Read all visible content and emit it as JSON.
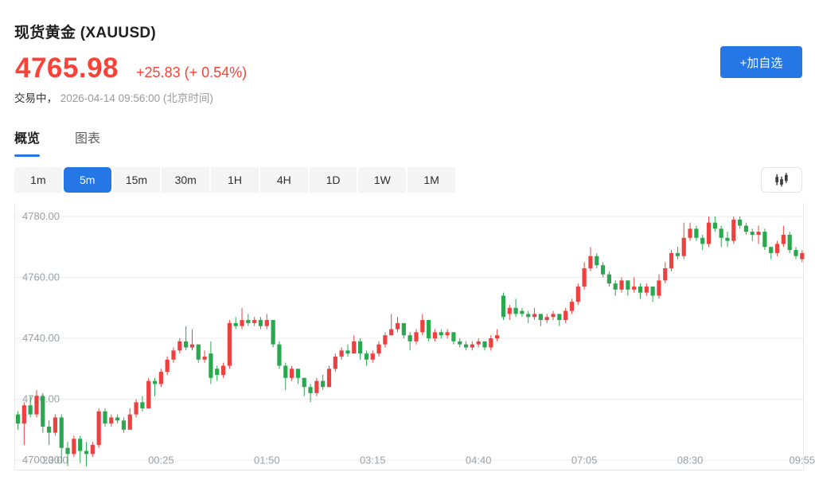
{
  "header": {
    "title": "现货黄金 (XAUUSD)",
    "price": "4765.98",
    "change": "+25.83 (+ 0.54%)",
    "status_label": "交易中，",
    "timestamp": "2026-04-14 09:56:00",
    "timezone_note": "(北京时间)",
    "add_watchlist_label": "+加自选"
  },
  "tabs": [
    {
      "label": "概览",
      "active": true
    },
    {
      "label": "图表",
      "active": false
    }
  ],
  "intervals": [
    {
      "label": "1m",
      "active": false
    },
    {
      "label": "5m",
      "active": true
    },
    {
      "label": "15m",
      "active": false
    },
    {
      "label": "30m",
      "active": false
    },
    {
      "label": "1H",
      "active": false
    },
    {
      "label": "4H",
      "active": false
    },
    {
      "label": "1D",
      "active": false
    },
    {
      "label": "1W",
      "active": false
    },
    {
      "label": "1M",
      "active": false
    }
  ],
  "icons": {
    "chart_type_icon": "candlestick-chart-icon"
  },
  "colors": {
    "accent_blue": "#2577e5",
    "price_red": "#fb4238",
    "up_red": "#ef4040",
    "down_green": "#2aa850",
    "grid": "#ececec",
    "axis_text": "#9aa0a6"
  },
  "chart_data": {
    "type": "candlestick",
    "interval": "5m",
    "up_color": "#ef4040",
    "down_color": "#2aa850",
    "ylim": [
      4700,
      4780
    ],
    "grid": true,
    "y_ticks": [
      {
        "label": "4780.00",
        "value": 4780
      },
      {
        "label": "4760.00",
        "value": 4760
      },
      {
        "label": "4740.00",
        "value": 4740
      },
      {
        "label": "4720.00",
        "value": 4720
      },
      {
        "label": "4700.00",
        "value": 4700
      }
    ],
    "x_labels": [
      {
        "label": "23:00",
        "index": 6
      },
      {
        "label": "00:25",
        "index": 23
      },
      {
        "label": "01:50",
        "index": 40
      },
      {
        "label": "03:15",
        "index": 57
      },
      {
        "label": "04:40",
        "index": 74
      },
      {
        "label": "07:05",
        "index": 91
      },
      {
        "label": "08:30",
        "index": 108
      },
      {
        "label": "09:55",
        "index": 126
      }
    ],
    "candles_ohlc": [
      [
        4715,
        4716,
        4710,
        4712
      ],
      [
        4712,
        4719,
        4705,
        4718
      ],
      [
        4718,
        4721,
        4714,
        4715
      ],
      [
        4715,
        4723,
        4714,
        4721
      ],
      [
        4721,
        4722,
        4709,
        4711
      ],
      [
        4711,
        4713,
        4705,
        4709
      ],
      [
        4709,
        4715,
        4708,
        4714
      ],
      [
        4714,
        4715,
        4699,
        4704
      ],
      [
        4704,
        4706,
        4698,
        4702
      ],
      [
        4702,
        4708,
        4701,
        4707
      ],
      [
        4707,
        4708,
        4699,
        4703
      ],
      [
        4703,
        4706,
        4698,
        4702
      ],
      [
        4702,
        4706,
        4701,
        4705
      ],
      [
        4705,
        4717,
        4704,
        4716
      ],
      [
        4716,
        4717,
        4711,
        4712
      ],
      [
        4712,
        4715,
        4711,
        4714
      ],
      [
        4714,
        4715,
        4712,
        4713
      ],
      [
        4713,
        4714,
        4709,
        4710
      ],
      [
        4710,
        4717,
        4710,
        4715
      ],
      [
        4715,
        4720,
        4714,
        4719
      ],
      [
        4719,
        4721,
        4716,
        4717
      ],
      [
        4717,
        4727,
        4717,
        4726
      ],
      [
        4726,
        4727,
        4721,
        4725
      ],
      [
        4725,
        4730,
        4724,
        4729
      ],
      [
        4729,
        4734,
        4728,
        4733
      ],
      [
        4733,
        4737,
        4732,
        4736
      ],
      [
        4736,
        4740,
        4735,
        4739
      ],
      [
        4739,
        4744,
        4736,
        4737
      ],
      [
        4737,
        4743,
        4736,
        4738
      ],
      [
        4738,
        4738,
        4732,
        4733
      ],
      [
        4733,
        4736,
        4732,
        4734
      ],
      [
        4735,
        4739,
        4725,
        4727
      ],
      [
        4730,
        4731,
        4726,
        4728
      ],
      [
        4728,
        4732,
        4727,
        4731
      ],
      [
        4731,
        4746,
        4730,
        4745
      ],
      [
        4745,
        4747,
        4743,
        4744
      ],
      [
        4744,
        4750,
        4743,
        4746
      ],
      [
        4746,
        4748,
        4744,
        4745
      ],
      [
        4745,
        4747,
        4744,
        4746
      ],
      [
        4746,
        4747,
        4743,
        4744
      ],
      [
        4744,
        4748,
        4743,
        4746
      ],
      [
        4746,
        4746,
        4737,
        4738
      ],
      [
        4738,
        4739,
        4730,
        4731
      ],
      [
        4731,
        4732,
        4723,
        4727
      ],
      [
        4727,
        4731,
        4726,
        4730
      ],
      [
        4730,
        4730,
        4725,
        4727
      ],
      [
        4727,
        4727,
        4721,
        4724
      ],
      [
        4724,
        4725,
        4719,
        4722
      ],
      [
        4722,
        4727,
        4721,
        4726
      ],
      [
        4726,
        4728,
        4723,
        4724
      ],
      [
        4724,
        4731,
        4724,
        4730
      ],
      [
        4730,
        4735,
        4729,
        4734
      ],
      [
        4734,
        4737,
        4733,
        4736
      ],
      [
        4736,
        4738,
        4734,
        4735
      ],
      [
        4735,
        4741,
        4735,
        4739
      ],
      [
        4739,
        4740,
        4733,
        4735
      ],
      [
        4735,
        4736,
        4731,
        4733
      ],
      [
        4733,
        4736,
        4732,
        4735
      ],
      [
        4735,
        4739,
        4734,
        4738
      ],
      [
        4738,
        4742,
        4737,
        4741
      ],
      [
        4741,
        4748,
        4741,
        4743
      ],
      [
        4743,
        4747,
        4742,
        4745
      ],
      [
        4745,
        4745,
        4740,
        4741
      ],
      [
        4741,
        4742,
        4736,
        4739
      ],
      [
        4739,
        4743,
        4738,
        4742
      ],
      [
        4742,
        4748,
        4741,
        4746
      ],
      [
        4746,
        4746,
        4739,
        4740
      ],
      [
        4740,
        4743,
        4739,
        4742
      ],
      [
        4742,
        4743,
        4740,
        4741
      ],
      [
        4741,
        4743,
        4740,
        4742
      ],
      [
        4742,
        4742,
        4738,
        4739
      ],
      [
        4739,
        4740,
        4737,
        4738
      ],
      [
        4738,
        4739,
        4736,
        4737
      ],
      [
        4737,
        4739,
        4736,
        4738
      ],
      [
        4738,
        4740,
        4737,
        4739
      ],
      [
        4739,
        4739,
        4736,
        4737
      ],
      [
        4737,
        4741,
        4736,
        4740
      ],
      [
        4740,
        4743,
        4739,
        4741
      ],
      [
        4754,
        4755,
        4746,
        4747
      ],
      [
        4748,
        4751,
        4746,
        4750
      ],
      [
        4750,
        4753,
        4747,
        4748
      ],
      [
        4749,
        4750,
        4747,
        4748
      ],
      [
        4748,
        4749,
        4745,
        4747
      ],
      [
        4747,
        4750,
        4746,
        4748
      ],
      [
        4748,
        4748,
        4744,
        4746
      ],
      [
        4746,
        4748,
        4745,
        4747
      ],
      [
        4747,
        4749,
        4746,
        4748
      ],
      [
        4748,
        4748,
        4744,
        4746
      ],
      [
        4746,
        4750,
        4745,
        4749
      ],
      [
        4749,
        4753,
        4748,
        4752
      ],
      [
        4752,
        4758,
        4751,
        4757
      ],
      [
        4757,
        4765,
        4756,
        4763
      ],
      [
        4763,
        4770,
        4762,
        4767
      ],
      [
        4767,
        4768,
        4763,
        4764
      ],
      [
        4764,
        4765,
        4760,
        4761
      ],
      [
        4761,
        4762,
        4757,
        4758
      ],
      [
        4758,
        4759,
        4754,
        4756
      ],
      [
        4756,
        4760,
        4755,
        4759
      ],
      [
        4759,
        4759,
        4754,
        4756
      ],
      [
        4756,
        4760,
        4755,
        4757
      ],
      [
        4757,
        4758,
        4753,
        4755
      ],
      [
        4755,
        4758,
        4754,
        4757
      ],
      [
        4757,
        4757,
        4752,
        4754
      ],
      [
        4754,
        4761,
        4753,
        4759
      ],
      [
        4759,
        4765,
        4758,
        4763
      ],
      [
        4763,
        4769,
        4762,
        4768
      ],
      [
        4768,
        4770,
        4766,
        4767
      ],
      [
        4767,
        4778,
        4766,
        4773
      ],
      [
        4773,
        4778,
        4772,
        4776
      ],
      [
        4776,
        4777,
        4772,
        4773
      ],
      [
        4773,
        4774,
        4769,
        4771
      ],
      [
        4771,
        4780,
        4770,
        4778
      ],
      [
        4778,
        4780,
        4775,
        4776
      ],
      [
        4776,
        4777,
        4770,
        4773
      ],
      [
        4773,
        4775,
        4770,
        4772
      ],
      [
        4772,
        4780,
        4771,
        4779
      ],
      [
        4779,
        4780,
        4776,
        4777
      ],
      [
        4777,
        4778,
        4774,
        4775
      ],
      [
        4775,
        4776,
        4772,
        4774
      ],
      [
        4774,
        4777,
        4771,
        4775
      ],
      [
        4775,
        4776,
        4769,
        4770
      ],
      [
        4770,
        4770,
        4766,
        4768
      ],
      [
        4768,
        4772,
        4767,
        4771
      ],
      [
        4771,
        4777,
        4770,
        4774
      ],
      [
        4774,
        4775,
        4768,
        4769
      ],
      [
        4769,
        4770,
        4766,
        4767
      ],
      [
        4766,
        4769,
        4765,
        4768
      ]
    ]
  }
}
